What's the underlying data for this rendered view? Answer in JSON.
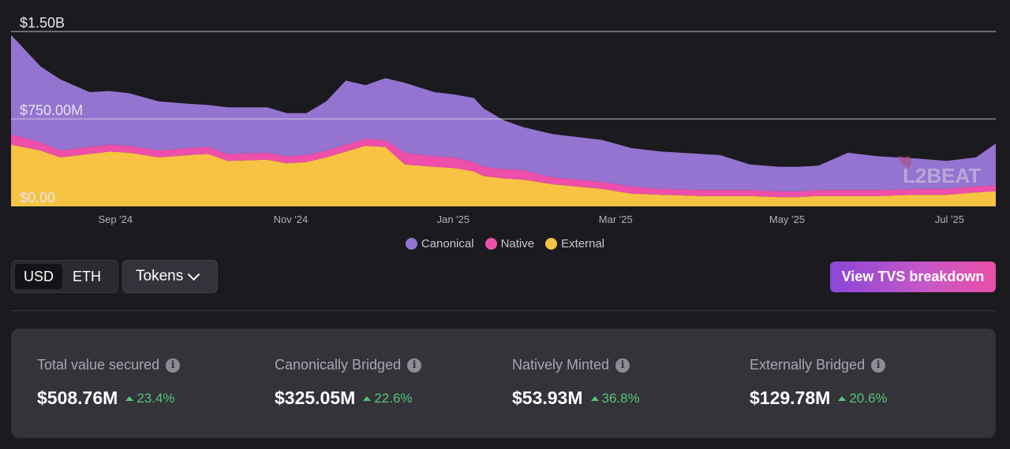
{
  "chart_data": {
    "type": "area",
    "stacked": true,
    "y_ticks": [
      "$0.00",
      "$750.00M",
      "$1.50B"
    ],
    "ylim": [
      0,
      1.5
    ],
    "y_unit": "billion USD",
    "x_ticks": [
      "Sep '24",
      "Nov '24",
      "Jan '25",
      "Mar '25",
      "May '25",
      "Jul '25"
    ],
    "x_tick_positions": [
      0.106,
      0.284,
      0.449,
      0.614,
      0.788,
      0.953
    ],
    "x_tick_position_unit": "fraction of date range",
    "legend_placement": "bottom-center",
    "x": [
      0,
      0.03,
      0.05,
      0.08,
      0.1,
      0.12,
      0.15,
      0.18,
      0.2,
      0.22,
      0.26,
      0.28,
      0.3,
      0.32,
      0.34,
      0.36,
      0.38,
      0.4,
      0.43,
      0.45,
      0.47,
      0.48,
      0.5,
      0.52,
      0.55,
      0.6,
      0.63,
      0.66,
      0.7,
      0.72,
      0.75,
      0.78,
      0.8,
      0.82,
      0.85,
      0.88,
      0.92,
      0.95,
      0.98,
      1.0
    ],
    "series": [
      {
        "name": "External",
        "color": "#f6c343",
        "values": [
          0.53,
          0.48,
          0.42,
          0.45,
          0.47,
          0.46,
          0.42,
          0.44,
          0.45,
          0.39,
          0.4,
          0.37,
          0.38,
          0.42,
          0.47,
          0.52,
          0.51,
          0.36,
          0.34,
          0.33,
          0.3,
          0.26,
          0.24,
          0.23,
          0.19,
          0.15,
          0.11,
          0.1,
          0.09,
          0.09,
          0.09,
          0.08,
          0.08,
          0.09,
          0.09,
          0.09,
          0.1,
          0.1,
          0.12,
          0.13
        ]
      },
      {
        "name": "Native",
        "color": "#ee4faa",
        "values": [
          0.09,
          0.07,
          0.06,
          0.06,
          0.06,
          0.06,
          0.06,
          0.06,
          0.06,
          0.06,
          0.06,
          0.06,
          0.06,
          0.06,
          0.06,
          0.06,
          0.06,
          0.1,
          0.09,
          0.09,
          0.08,
          0.08,
          0.08,
          0.08,
          0.06,
          0.06,
          0.06,
          0.05,
          0.05,
          0.05,
          0.05,
          0.05,
          0.05,
          0.05,
          0.05,
          0.05,
          0.05,
          0.05,
          0.05,
          0.05
        ]
      },
      {
        "name": "Canonical",
        "color": "#9474d0",
        "values": [
          0.85,
          0.65,
          0.61,
          0.47,
          0.46,
          0.45,
          0.42,
          0.38,
          0.36,
          0.4,
          0.39,
          0.37,
          0.36,
          0.42,
          0.55,
          0.46,
          0.53,
          0.6,
          0.55,
          0.54,
          0.55,
          0.5,
          0.42,
          0.37,
          0.37,
          0.36,
          0.33,
          0.32,
          0.31,
          0.3,
          0.22,
          0.21,
          0.21,
          0.21,
          0.32,
          0.29,
          0.26,
          0.24,
          0.25,
          0.36
        ]
      }
    ]
  },
  "legend": [
    {
      "label": "Canonical",
      "color": "#9474d0"
    },
    {
      "label": "Native",
      "color": "#ee4faa"
    },
    {
      "label": "External",
      "color": "#f6c343"
    }
  ],
  "controls": {
    "currency_options": [
      "USD",
      "ETH"
    ],
    "currency_selected": "USD",
    "tokens_label": "Tokens",
    "cta_label": "View TVS breakdown"
  },
  "watermark": "L2BEAT",
  "stats": [
    {
      "label": "Total value secured",
      "value": "$508.76M",
      "change": "23.4%"
    },
    {
      "label": "Canonically Bridged",
      "value": "$325.05M",
      "change": "22.6%"
    },
    {
      "label": "Natively Minted",
      "value": "$53.93M",
      "change": "36.8%"
    },
    {
      "label": "Externally Bridged",
      "value": "$129.78M",
      "change": "20.6%"
    }
  ]
}
